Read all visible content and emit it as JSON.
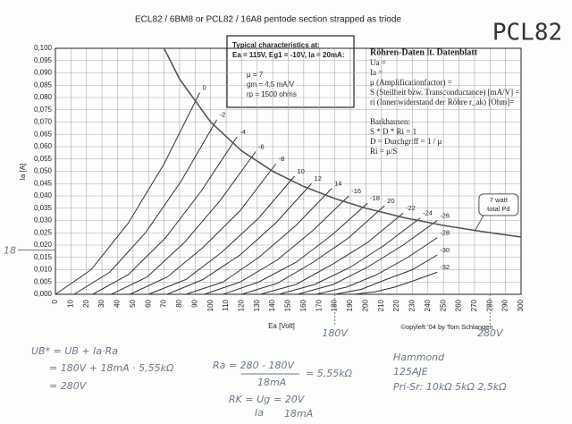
{
  "chart_data": {
    "type": "line",
    "title": "ECL82 / 6BM8 or PCL82 / 16A8 pentode section strapped as triode",
    "x_label": "Ea [Volt]",
    "y_label": "Ia [A]",
    "xlim": [
      0,
      300
    ],
    "ylim": [
      0,
      0.1
    ],
    "xticks": [
      0,
      10,
      20,
      30,
      40,
      50,
      60,
      70,
      80,
      90,
      100,
      110,
      120,
      130,
      140,
      150,
      160,
      170,
      180,
      190,
      200,
      210,
      220,
      230,
      240,
      250,
      260,
      270,
      280,
      290,
      300
    ],
    "yticks": [
      {
        "value": 0,
        "label": "0,000"
      },
      {
        "value": 0.005,
        "label": "0,005"
      },
      {
        "value": 0.01,
        "label": "0,010"
      },
      {
        "value": 0.015,
        "label": "0,015"
      },
      {
        "value": 0.02,
        "label": "0,020"
      },
      {
        "value": 0.025,
        "label": "0,025"
      },
      {
        "value": 0.03,
        "label": "0,030"
      },
      {
        "value": 0.035,
        "label": "0,035"
      },
      {
        "value": 0.04,
        "label": "0,040"
      },
      {
        "value": 0.045,
        "label": "0,045"
      },
      {
        "value": 0.05,
        "label": "0,050"
      },
      {
        "value": 0.055,
        "label": "0,055"
      },
      {
        "value": 0.06,
        "label": "0,060"
      },
      {
        "value": 0.065,
        "label": "0,065"
      },
      {
        "value": 0.07,
        "label": "0,070"
      },
      {
        "value": 0.075,
        "label": "0,075"
      },
      {
        "value": 0.08,
        "label": "0,080"
      },
      {
        "value": 0.085,
        "label": "0,085"
      },
      {
        "value": 0.09,
        "label": "0,090"
      },
      {
        "value": 0.095,
        "label": "0,095"
      },
      {
        "value": 0.1,
        "label": "0,100"
      }
    ],
    "grid": true,
    "color": "#333333",
    "series": [
      {
        "name": "0",
        "x": [
          0,
          23,
          47,
          70,
          93
        ],
        "values": [
          0,
          0.01,
          0.029,
          0.053,
          0.082
        ]
      },
      {
        "name": "-2",
        "x": [
          12,
          35,
          58,
          81,
          104
        ],
        "values": [
          0,
          0.009,
          0.025,
          0.046,
          0.071
        ]
      },
      {
        "name": "-4",
        "x": [
          24,
          47,
          71,
          94,
          117
        ],
        "values": [
          0,
          0.008,
          0.023,
          0.042,
          0.064
        ]
      },
      {
        "name": "-6",
        "x": [
          36,
          59,
          83,
          106,
          129
        ],
        "values": [
          0,
          0.007,
          0.021,
          0.038,
          0.058
        ]
      },
      {
        "name": "-8",
        "x": [
          48,
          72,
          95,
          119,
          142
        ],
        "values": [
          0,
          0.007,
          0.019,
          0.034,
          0.053
        ]
      },
      {
        "name": "10",
        "x": [
          60,
          84,
          107,
          131,
          154
        ],
        "values": [
          0,
          0.006,
          0.017,
          0.031,
          0.048
        ]
      },
      {
        "name": "12",
        "x": [
          72,
          95,
          119,
          142,
          165
        ],
        "values": [
          0,
          0.006,
          0.016,
          0.029,
          0.045
        ]
      },
      {
        "name": "14",
        "x": [
          84,
          108,
          131,
          155,
          178
        ],
        "values": [
          0,
          0.005,
          0.015,
          0.028,
          0.043
        ]
      },
      {
        "name": "-16",
        "x": [
          96,
          119,
          143,
          166,
          189
        ],
        "values": [
          0,
          0.005,
          0.014,
          0.026,
          0.04
        ]
      },
      {
        "name": "-18",
        "x": [
          108,
          131,
          155,
          178,
          201
        ],
        "values": [
          0,
          0.005,
          0.013,
          0.024,
          0.037
        ]
      },
      {
        "name": "20",
        "x": [
          120,
          143,
          166,
          189,
          212
        ],
        "values": [
          0,
          0.0045,
          0.013,
          0.023,
          0.036
        ]
      },
      {
        "name": "-22",
        "x": [
          132,
          155,
          178,
          201,
          224
        ],
        "values": [
          0,
          0.004,
          0.012,
          0.021,
          0.033
        ]
      },
      {
        "name": "-24",
        "x": [
          144,
          167,
          190,
          212,
          235
        ],
        "values": [
          0,
          0.004,
          0.011,
          0.02,
          0.031
        ]
      },
      {
        "name": "-26",
        "x": [
          156,
          179,
          201,
          224,
          246
        ],
        "values": [
          0,
          0.004,
          0.011,
          0.02,
          0.03
        ]
      },
      {
        "name": "-28",
        "x": [
          168,
          188,
          207,
          227,
          246
        ],
        "values": [
          0,
          0.003,
          0.008,
          0.015,
          0.023
        ]
      },
      {
        "name": "-30",
        "x": [
          180,
          197,
          213,
          230,
          246
        ],
        "values": [
          0,
          0.002,
          0.006,
          0.01,
          0.016
        ]
      },
      {
        "name": "-32",
        "x": [
          192,
          206,
          219,
          233,
          246
        ],
        "values": [
          0,
          0.001,
          0.003,
          0.006,
          0.009
        ]
      }
    ],
    "power_curve": {
      "label": [
        "7 watt",
        "total Pd"
      ],
      "label_at": 270,
      "x": [
        70,
        80,
        100,
        120,
        140,
        160,
        180,
        200,
        225,
        250,
        275,
        300
      ],
      "values": [
        0.1,
        0.0875,
        0.07,
        0.0583,
        0.05,
        0.0438,
        0.0389,
        0.035,
        0.0311,
        0.028,
        0.0255,
        0.0233
      ]
    },
    "info_box": [
      "Typical characteristics at:",
      "Ea = 115V, Eg1 = -10V, Ia = 20mA:",
      "μ     = 7",
      "gm  = 4,5 mA/V",
      "rp   = 1500 ohms"
    ],
    "credit": "©opyleft '04 by Tom Schlangen",
    "annotations": [
      {
        "text": "18",
        "y": 0.018
      },
      {
        "text": "180V",
        "x": 180
      },
      {
        "text": "280V",
        "x": 280
      }
    ]
  },
  "badge": "PCL82",
  "datasheet": [
    "Röhren-Daten lt. Datenblatt",
    "Ua =",
    "Ia =",
    "μ (Amplificationfactor) =",
    "S (Steilheit bzw. Transconductance) [mA/V] =",
    "ri (Innenwiderstand der Röhre r_ak) [Ohm]=",
    "Barkhausen:",
    "S * D * Ri = 1",
    "D = Durchgriff = 1 / μ",
    "Ri = μ/S"
  ],
  "notes": {
    "ub": [
      "UB* = UB + Ia·Ra",
      "= 180V + 18mA · 5,55kΩ",
      "= 280V"
    ],
    "ra": [
      "Ra = 280 - 180V",
      "18mA",
      "= 5,55kΩ"
    ],
    "rk": [
      "RK = Ug",
      "Ia",
      "= 20V",
      "18mA"
    ],
    "transformer": [
      "Hammond",
      "125AJE",
      "Pri-Sr:  10kΩ  5kΩ  2,5kΩ"
    ]
  }
}
